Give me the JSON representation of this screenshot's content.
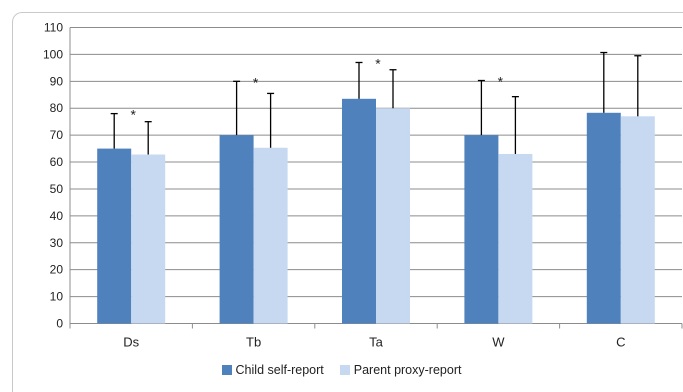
{
  "chart_data": {
    "type": "bar",
    "categories": [
      "Ds",
      "Tb",
      "Ta",
      "W",
      "C"
    ],
    "series": [
      {
        "name": "Child self-report",
        "color": "#4f81bd",
        "values": [
          65,
          70,
          83.5,
          70,
          78.3
        ],
        "error_upper": [
          78,
          90,
          97,
          90.3,
          100.7
        ]
      },
      {
        "name": "Parent proxy-report",
        "color": "#c6d9f1",
        "values": [
          62.8,
          65.3,
          80,
          63,
          77
        ],
        "error_upper": [
          75,
          85.5,
          94.3,
          84.3,
          99.5
        ]
      }
    ],
    "annotations": [
      "*",
      "*",
      "*",
      "*",
      ""
    ],
    "ylim": [
      0,
      110
    ],
    "yticks": [
      "0",
      "10",
      "20",
      "30",
      "40",
      "50",
      "60",
      "70",
      "80",
      "90",
      "100",
      "110"
    ],
    "grid": true,
    "legend_position": "bottom",
    "title": "",
    "xlabel": "",
    "ylabel": ""
  }
}
